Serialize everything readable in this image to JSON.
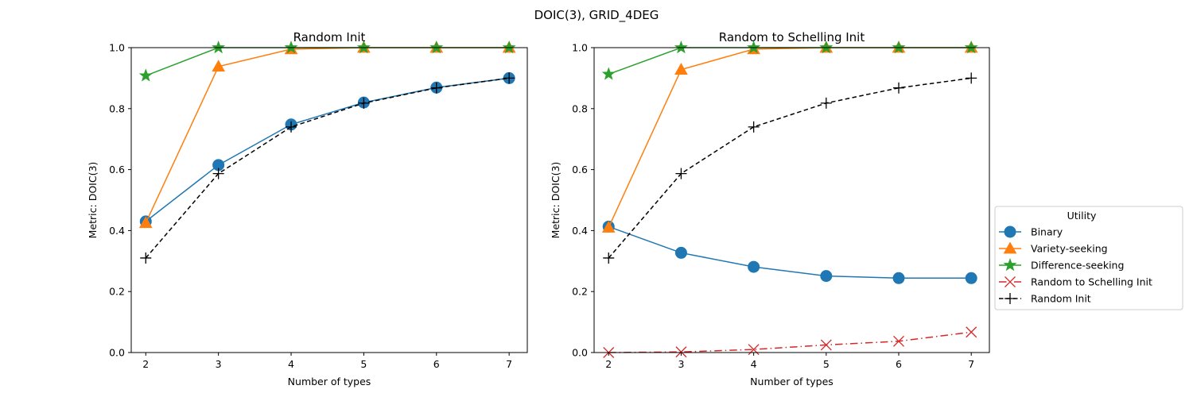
{
  "figure": {
    "suptitle": "DOIC(3), GRID_4DEG",
    "legend_title": "Utility"
  },
  "legend_entries": [
    {
      "label": "Binary",
      "color": "#1f77b4",
      "marker": "circle",
      "line": "solid"
    },
    {
      "label": "Variety-seeking",
      "color": "#ff7f0e",
      "marker": "triangle",
      "line": "solid"
    },
    {
      "label": "Difference-seeking",
      "color": "#2ca02c",
      "marker": "star",
      "line": "solid"
    },
    {
      "label": "Random to Schelling Init",
      "color": "#d62728",
      "marker": "x",
      "line": "dashdot"
    },
    {
      "label": "Random Init",
      "color": "#000000",
      "marker": "plus",
      "line": "dashed"
    }
  ],
  "chart_data": [
    {
      "type": "line",
      "title": "Random Init",
      "xlabel": "Number of types",
      "ylabel": "Metric: DOIC(3)",
      "xlim": [
        1.8,
        7.25
      ],
      "ylim": [
        0,
        1.0
      ],
      "xticks": [
        "2",
        "3",
        "4",
        "5",
        "6",
        "7"
      ],
      "yticks": [
        "0.0",
        "0.2",
        "0.4",
        "0.6",
        "0.8",
        "1.0"
      ],
      "x": [
        2,
        3,
        4,
        5,
        6,
        7
      ],
      "series": [
        {
          "name": "Binary",
          "color": "#1f77b4",
          "marker": "circle",
          "line": "solid",
          "values": [
            0.43,
            0.615,
            0.748,
            0.82,
            0.869,
            0.9
          ]
        },
        {
          "name": "Variety-seeking",
          "color": "#ff7f0e",
          "marker": "triangle",
          "line": "solid",
          "values": [
            0.425,
            0.938,
            0.995,
            1.0,
            1.0,
            1.0
          ]
        },
        {
          "name": "Difference-seeking",
          "color": "#2ca02c",
          "marker": "star",
          "line": "solid",
          "values": [
            0.908,
            1.0,
            1.0,
            1.0,
            1.0,
            1.0
          ]
        },
        {
          "name": "Random Init",
          "color": "#000000",
          "marker": "plus",
          "line": "dashed",
          "values": [
            0.31,
            0.587,
            0.74,
            0.818,
            0.868,
            0.9
          ]
        }
      ]
    },
    {
      "type": "line",
      "title": "Random to Schelling Init",
      "xlabel": "Number of types",
      "ylabel": "Metric: DOIC(3)",
      "xlim": [
        1.8,
        7.25
      ],
      "ylim": [
        0,
        1.0
      ],
      "xticks": [
        "2",
        "3",
        "4",
        "5",
        "6",
        "7"
      ],
      "yticks": [
        "0.0",
        "0.2",
        "0.4",
        "0.6",
        "0.8",
        "1.0"
      ],
      "x": [
        2,
        3,
        4,
        5,
        6,
        7
      ],
      "series": [
        {
          "name": "Binary",
          "color": "#1f77b4",
          "marker": "circle",
          "line": "solid",
          "values": [
            0.413,
            0.327,
            0.281,
            0.251,
            0.244,
            0.244
          ]
        },
        {
          "name": "Variety-seeking",
          "color": "#ff7f0e",
          "marker": "triangle",
          "line": "solid",
          "values": [
            0.41,
            0.928,
            0.995,
            1.0,
            1.0,
            1.0
          ]
        },
        {
          "name": "Difference-seeking",
          "color": "#2ca02c",
          "marker": "star",
          "line": "solid",
          "values": [
            0.913,
            1.0,
            1.0,
            1.0,
            1.0,
            1.0
          ]
        },
        {
          "name": "Random to Schelling Init",
          "color": "#d62728",
          "marker": "x",
          "line": "dashdot",
          "values": [
            0.0,
            0.002,
            0.01,
            0.025,
            0.037,
            0.067
          ]
        },
        {
          "name": "Random Init",
          "color": "#000000",
          "marker": "plus",
          "line": "dashed",
          "values": [
            0.31,
            0.587,
            0.74,
            0.818,
            0.868,
            0.9
          ]
        }
      ]
    }
  ]
}
